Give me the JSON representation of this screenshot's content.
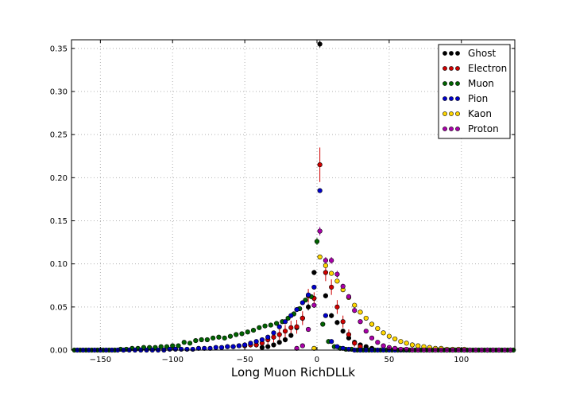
{
  "chart_data": {
    "type": "scatter",
    "title": "",
    "xlabel": "Long Muon RichDLLk",
    "ylabel": "",
    "xlim": [
      -170,
      137
    ],
    "ylim": [
      0,
      0.36
    ],
    "x_ticks": [
      -150,
      -100,
      -50,
      0,
      50,
      100
    ],
    "y_ticks": [
      0.0,
      0.05,
      0.1,
      0.15,
      0.2,
      0.25,
      0.3,
      0.35
    ],
    "x_tick_labels": [
      "−150",
      "−100",
      "−50",
      "0",
      "50",
      "100"
    ],
    "y_tick_labels": [
      "0.00",
      "0.05",
      "0.10",
      "0.15",
      "0.20",
      "0.25",
      "0.30",
      "0.35"
    ],
    "grid": true,
    "error_bars": true,
    "legend_position": "top-right",
    "series": [
      {
        "name": "Ghost",
        "color": "#000000",
        "x": [
          -38,
          -34,
          -30,
          -26,
          -22,
          -18,
          -14,
          -10,
          -6,
          -2,
          2,
          6,
          10,
          14,
          18,
          22,
          26,
          30,
          34,
          38
        ],
        "y": [
          0.003,
          0.004,
          0.006,
          0.009,
          0.012,
          0.017,
          0.026,
          0.037,
          0.05,
          0.09,
          0.355,
          0.063,
          0.04,
          0.032,
          0.022,
          0.014,
          0.009,
          0.006,
          0.004,
          0.002
        ],
        "err": [
          0.001,
          0.001,
          0.002,
          0.002,
          0.003,
          0.003,
          0.004,
          0.004,
          0.004,
          0.003,
          0.004,
          0.003,
          0.003,
          0.003,
          0.003,
          0.002,
          0.002,
          0.002,
          0.001,
          0.001
        ]
      },
      {
        "name": "Electron",
        "color": "#d00000",
        "x": [
          -62,
          -58,
          -54,
          -50,
          -46,
          -42,
          -38,
          -34,
          -30,
          -26,
          -22,
          -18,
          -14,
          -10,
          -6,
          -2,
          2,
          6,
          10,
          14,
          18,
          22,
          26,
          30
        ],
        "y": [
          0.004,
          0.004,
          0.005,
          0.005,
          0.006,
          0.006,
          0.008,
          0.012,
          0.015,
          0.018,
          0.022,
          0.026,
          0.027,
          0.037,
          0.063,
          0.06,
          0.215,
          0.09,
          0.073,
          0.05,
          0.033,
          0.018,
          0.008,
          0.004
        ],
        "err": [
          0.002,
          0.002,
          0.002,
          0.002,
          0.003,
          0.003,
          0.004,
          0.005,
          0.006,
          0.006,
          0.007,
          0.008,
          0.008,
          0.008,
          0.008,
          0.007,
          0.02,
          0.01,
          0.009,
          0.008,
          0.007,
          0.006,
          0.004,
          0.003
        ]
      },
      {
        "name": "Muon",
        "color": "#006400",
        "x": [
          -168,
          -164,
          -160,
          -156,
          -152,
          -148,
          -144,
          -140,
          -136,
          -132,
          -128,
          -124,
          -120,
          -116,
          -112,
          -108,
          -104,
          -100,
          -96,
          -92,
          -88,
          -84,
          -80,
          -76,
          -72,
          -68,
          -64,
          -60,
          -56,
          -52,
          -48,
          -44,
          -40,
          -36,
          -32,
          -28,
          -24,
          -20,
          -16,
          -12,
          -8,
          -4,
          0,
          4,
          8,
          12,
          16,
          20,
          24,
          28,
          32,
          36,
          40,
          44,
          48,
          52,
          56,
          60,
          64,
          68,
          72,
          76,
          80,
          84,
          88,
          92,
          96,
          100,
          104,
          108,
          112,
          116,
          120,
          124,
          128,
          132,
          136
        ],
        "y": [
          0.0,
          0.0,
          0.0,
          0.0,
          0.0,
          0.0,
          0.0,
          0.0,
          0.001,
          0.001,
          0.002,
          0.002,
          0.003,
          0.003,
          0.003,
          0.004,
          0.004,
          0.005,
          0.005,
          0.009,
          0.008,
          0.011,
          0.012,
          0.012,
          0.014,
          0.015,
          0.014,
          0.016,
          0.018,
          0.019,
          0.021,
          0.023,
          0.026,
          0.028,
          0.029,
          0.031,
          0.033,
          0.037,
          0.042,
          0.048,
          0.058,
          0.062,
          0.126,
          0.03,
          0.01,
          0.004,
          0.002,
          0.001,
          0.001,
          0.0,
          0.0,
          0.0,
          0.0,
          0.0,
          0.0,
          0.0,
          0.0,
          0.0,
          0.0,
          0.0,
          0.0,
          0.0,
          0.0,
          0.0,
          0.0,
          0.0,
          0.0,
          0.0,
          0.0,
          0.0,
          0.0,
          0.0,
          0.0,
          0.0,
          0.0,
          0.0,
          0.0
        ],
        "err": [
          0.0,
          0.0,
          0.0,
          0.0,
          0.0,
          0.0,
          0.0,
          0.0,
          0.0005,
          0.0005,
          0.0008,
          0.0008,
          0.001,
          0.001,
          0.001,
          0.001,
          0.001,
          0.001,
          0.001,
          0.0015,
          0.0015,
          0.0015,
          0.0015,
          0.0015,
          0.0015,
          0.0015,
          0.0015,
          0.0015,
          0.0015,
          0.0015,
          0.002,
          0.002,
          0.002,
          0.002,
          0.002,
          0.002,
          0.002,
          0.002,
          0.002,
          0.002,
          0.002,
          0.002,
          0.004,
          0.002,
          0.001,
          0.001,
          0.0005,
          0.0005,
          0.0005,
          0.0,
          0.0,
          0.0,
          0.0,
          0.0,
          0.0,
          0.0,
          0.0,
          0.0,
          0.0,
          0.0,
          0.0,
          0.0,
          0.0,
          0.0,
          0.0,
          0.0,
          0.0,
          0.0,
          0.0,
          0.0,
          0.0,
          0.0,
          0.0,
          0.0,
          0.0,
          0.0,
          0.0
        ]
      },
      {
        "name": "Pion",
        "color": "#0000cc",
        "x": [
          -166,
          -162,
          -158,
          -154,
          -150,
          -146,
          -142,
          -138,
          -134,
          -130,
          -126,
          -122,
          -118,
          -114,
          -110,
          -106,
          -102,
          -98,
          -94,
          -90,
          -86,
          -82,
          -78,
          -74,
          -70,
          -66,
          -62,
          -58,
          -54,
          -50,
          -46,
          -42,
          -38,
          -34,
          -30,
          -26,
          -22,
          -18,
          -14,
          -10,
          -6,
          -2,
          2,
          6,
          10,
          14,
          18,
          22,
          26,
          30,
          34,
          38,
          42,
          46,
          50,
          54,
          58,
          62,
          66,
          70,
          74,
          78,
          82,
          86,
          90,
          94,
          98,
          102,
          106,
          110,
          114,
          118,
          122,
          126,
          130,
          134
        ],
        "y": [
          0.0,
          0.0,
          0.0,
          0.0,
          0.0,
          0.0,
          0.0,
          0.0,
          0.0,
          0.0,
          0.0,
          0.0,
          0.0,
          0.0,
          0.0,
          0.0,
          0.001,
          0.001,
          0.001,
          0.001,
          0.001,
          0.002,
          0.002,
          0.002,
          0.003,
          0.003,
          0.004,
          0.004,
          0.005,
          0.006,
          0.008,
          0.01,
          0.012,
          0.015,
          0.02,
          0.027,
          0.033,
          0.04,
          0.047,
          0.055,
          0.064,
          0.073,
          0.185,
          0.04,
          0.01,
          0.004,
          0.002,
          0.001,
          0.0,
          0.0,
          0.0,
          0.0,
          0.0,
          0.0,
          0.0,
          0.0,
          0.0,
          0.0,
          0.0,
          0.0,
          0.0,
          0.0,
          0.0,
          0.0,
          0.0,
          0.0,
          0.0,
          0.0,
          0.0,
          0.0,
          0.0,
          0.0,
          0.0,
          0.0,
          0.0,
          0.0
        ],
        "err": [
          0.0,
          0.0,
          0.0,
          0.0,
          0.0,
          0.0,
          0.0,
          0.0,
          0.0,
          0.0,
          0.0,
          0.0,
          0.0,
          0.0,
          0.0,
          0.0,
          0.0003,
          0.0003,
          0.0003,
          0.0003,
          0.0003,
          0.0005,
          0.0005,
          0.0005,
          0.0005,
          0.0005,
          0.0005,
          0.0005,
          0.0005,
          0.0008,
          0.0008,
          0.0008,
          0.001,
          0.001,
          0.001,
          0.001,
          0.001,
          0.0012,
          0.0012,
          0.0012,
          0.0015,
          0.0015,
          0.002,
          0.001,
          0.0008,
          0.0005,
          0.0003,
          0.0003,
          0.0,
          0.0,
          0.0,
          0.0,
          0.0,
          0.0,
          0.0,
          0.0,
          0.0,
          0.0,
          0.0,
          0.0,
          0.0,
          0.0,
          0.0,
          0.0,
          0.0,
          0.0,
          0.0,
          0.0,
          0.0,
          0.0,
          0.0,
          0.0,
          0.0,
          0.0,
          0.0,
          0.0
        ]
      },
      {
        "name": "Kaon",
        "color": "#ffd700",
        "x": [
          -2,
          2,
          6,
          10,
          14,
          18,
          22,
          26,
          30,
          34,
          38,
          42,
          46,
          50,
          54,
          58,
          62,
          66,
          70,
          74,
          78,
          82,
          86,
          90,
          94,
          98,
          102,
          106,
          110,
          114,
          118,
          122,
          126,
          130,
          134
        ],
        "y": [
          0.002,
          0.108,
          0.098,
          0.089,
          0.08,
          0.07,
          0.061,
          0.052,
          0.044,
          0.037,
          0.03,
          0.025,
          0.02,
          0.016,
          0.013,
          0.01,
          0.008,
          0.006,
          0.005,
          0.004,
          0.003,
          0.002,
          0.002,
          0.001,
          0.001,
          0.001,
          0.001,
          0.0,
          0.0,
          0.0,
          0.0,
          0.0,
          0.0,
          0.0,
          0.0
        ],
        "err": [
          0.0005,
          0.002,
          0.002,
          0.002,
          0.002,
          0.0015,
          0.0015,
          0.0015,
          0.0015,
          0.001,
          0.001,
          0.001,
          0.001,
          0.0008,
          0.0008,
          0.0008,
          0.0005,
          0.0005,
          0.0005,
          0.0005,
          0.0003,
          0.0003,
          0.0003,
          0.0003,
          0.0003,
          0.0003,
          0.0003,
          0.0,
          0.0,
          0.0,
          0.0,
          0.0,
          0.0,
          0.0,
          0.0
        ]
      },
      {
        "name": "Proton",
        "color": "#aa00aa",
        "x": [
          -14,
          -10,
          -6,
          -2,
          2,
          6,
          10,
          14,
          18,
          22,
          26,
          30,
          34,
          38,
          42,
          46,
          50,
          54,
          58,
          62,
          66,
          70,
          74,
          78,
          82,
          86,
          90,
          94,
          98,
          102,
          106,
          110,
          114,
          118,
          122,
          126,
          130,
          134
        ],
        "y": [
          0.002,
          0.005,
          0.024,
          0.052,
          0.138,
          0.104,
          0.104,
          0.088,
          0.074,
          0.062,
          0.046,
          0.033,
          0.022,
          0.014,
          0.009,
          0.005,
          0.003,
          0.002,
          0.001,
          0.001,
          0.0,
          0.0,
          0.0,
          0.0,
          0.0,
          0.0,
          0.0,
          0.0,
          0.0,
          0.0,
          0.0,
          0.0,
          0.0,
          0.0,
          0.0,
          0.0,
          0.0,
          0.0
        ],
        "err": [
          0.001,
          0.001,
          0.002,
          0.003,
          0.005,
          0.004,
          0.004,
          0.004,
          0.003,
          0.003,
          0.003,
          0.002,
          0.002,
          0.002,
          0.001,
          0.001,
          0.001,
          0.0005,
          0.0005,
          0.0005,
          0.0,
          0.0,
          0.0,
          0.0,
          0.0,
          0.0,
          0.0,
          0.0,
          0.0,
          0.0,
          0.0,
          0.0,
          0.0,
          0.0,
          0.0,
          0.0,
          0.0,
          0.0
        ]
      }
    ]
  }
}
